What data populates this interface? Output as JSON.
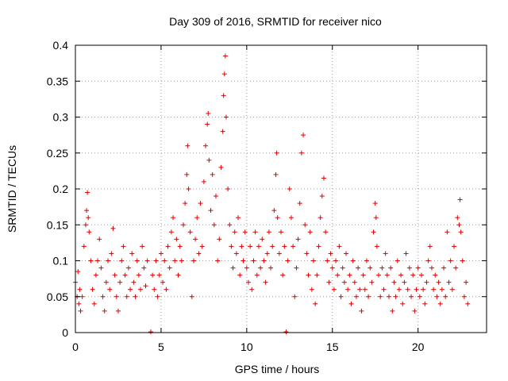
{
  "chart_data": {
    "type": "scatter",
    "title": "Day 309 of 2016, SRMTID for receiver nico",
    "xlabel": "GPS time / hours",
    "ylabel": "SRMTID / TECUs",
    "xlim": [
      0,
      24
    ],
    "ylim": [
      0,
      0.4
    ],
    "xticks": [
      0,
      5,
      10,
      15,
      20
    ],
    "xtick_labels": [
      "0",
      "5",
      "10",
      "15",
      "20"
    ],
    "yticks": [
      0,
      0.05,
      0.1,
      0.15,
      0.2,
      0.25,
      0.3,
      0.35,
      0.4
    ],
    "ytick_labels": [
      "0",
      "0.05",
      "0.1",
      "0.15",
      "0.2",
      "0.25",
      "0.3",
      "0.35",
      "0.4"
    ],
    "grid": true,
    "marker": "plus",
    "color": "#e00000",
    "series": [
      {
        "name": "SRMTID",
        "points": [
          [
            0.0,
            0.07
          ],
          [
            0.1,
            0.05
          ],
          [
            0.15,
            0.085
          ],
          [
            0.2,
            0.04
          ],
          [
            0.25,
            0.06
          ],
          [
            0.3,
            0.03
          ],
          [
            0.4,
            0.05
          ],
          [
            0.5,
            0.12
          ],
          [
            0.6,
            0.15
          ],
          [
            0.65,
            0.17
          ],
          [
            0.7,
            0.195
          ],
          [
            0.75,
            0.16
          ],
          [
            0.8,
            0.14
          ],
          [
            0.9,
            0.1
          ],
          [
            1.0,
            0.06
          ],
          [
            1.1,
            0.04
          ],
          [
            1.2,
            0.08
          ],
          [
            1.3,
            0.1
          ],
          [
            1.4,
            0.13
          ],
          [
            1.5,
            0.09
          ],
          [
            1.6,
            0.05
          ],
          [
            1.7,
            0.03
          ],
          [
            1.8,
            0.07
          ],
          [
            1.9,
            0.1
          ],
          [
            2.0,
            0.06
          ],
          [
            2.1,
            0.11
          ],
          [
            2.2,
            0.145
          ],
          [
            2.3,
            0.08
          ],
          [
            2.4,
            0.05
          ],
          [
            2.5,
            0.03
          ],
          [
            2.6,
            0.07
          ],
          [
            2.7,
            0.1
          ],
          [
            2.8,
            0.12
          ],
          [
            2.9,
            0.08
          ],
          [
            3.0,
            0.05
          ],
          [
            3.1,
            0.09
          ],
          [
            3.2,
            0.06
          ],
          [
            3.3,
            0.11
          ],
          [
            3.4,
            0.07
          ],
          [
            3.5,
            0.05
          ],
          [
            3.6,
            0.1
          ],
          [
            3.7,
            0.08
          ],
          [
            3.8,
            0.06
          ],
          [
            3.9,
            0.12
          ],
          [
            4.0,
            0.09
          ],
          [
            4.1,
            0.065
          ],
          [
            4.2,
            0.1
          ],
          [
            4.4,
            0.001
          ],
          [
            4.5,
            0.08
          ],
          [
            4.6,
            0.06
          ],
          [
            4.7,
            0.1
          ],
          [
            4.8,
            0.05
          ],
          [
            4.9,
            0.08
          ],
          [
            5.0,
            0.11
          ],
          [
            5.1,
            0.07
          ],
          [
            5.2,
            0.1
          ],
          [
            5.3,
            0.06
          ],
          [
            5.4,
            0.12
          ],
          [
            5.5,
            0.09
          ],
          [
            5.6,
            0.14
          ],
          [
            5.7,
            0.16
          ],
          [
            5.8,
            0.1
          ],
          [
            5.9,
            0.13
          ],
          [
            6.0,
            0.08
          ],
          [
            6.1,
            0.12
          ],
          [
            6.2,
            0.1
          ],
          [
            6.3,
            0.15
          ],
          [
            6.4,
            0.18
          ],
          [
            6.5,
            0.22
          ],
          [
            6.55,
            0.26
          ],
          [
            6.6,
            0.2
          ],
          [
            6.7,
            0.14
          ],
          [
            6.8,
            0.05
          ],
          [
            6.9,
            0.1
          ],
          [
            7.0,
            0.13
          ],
          [
            7.1,
            0.16
          ],
          [
            7.2,
            0.11
          ],
          [
            7.3,
            0.18
          ],
          [
            7.4,
            0.12
          ],
          [
            7.5,
            0.21
          ],
          [
            7.6,
            0.26
          ],
          [
            7.7,
            0.29
          ],
          [
            7.75,
            0.305
          ],
          [
            7.8,
            0.24
          ],
          [
            7.9,
            0.17
          ],
          [
            8.0,
            0.22
          ],
          [
            8.1,
            0.15
          ],
          [
            8.2,
            0.19
          ],
          [
            8.3,
            0.1
          ],
          [
            8.4,
            0.13
          ],
          [
            8.5,
            0.23
          ],
          [
            8.6,
            0.28
          ],
          [
            8.65,
            0.33
          ],
          [
            8.7,
            0.36
          ],
          [
            8.75,
            0.385
          ],
          [
            8.8,
            0.3
          ],
          [
            8.9,
            0.2
          ],
          [
            9.0,
            0.15
          ],
          [
            9.1,
            0.12
          ],
          [
            9.2,
            0.09
          ],
          [
            9.3,
            0.14
          ],
          [
            9.4,
            0.11
          ],
          [
            9.5,
            0.16
          ],
          [
            9.6,
            0.08
          ],
          [
            9.7,
            0.12
          ],
          [
            9.8,
            0.1
          ],
          [
            9.9,
            0.14
          ],
          [
            10.0,
            0.09
          ],
          [
            10.1,
            0.07
          ],
          [
            10.2,
            0.12
          ],
          [
            10.3,
            0.06
          ],
          [
            10.4,
            0.1
          ],
          [
            10.5,
            0.14
          ],
          [
            10.6,
            0.08
          ],
          [
            10.7,
            0.12
          ],
          [
            10.8,
            0.09
          ],
          [
            10.9,
            0.13
          ],
          [
            11.0,
            0.1
          ],
          [
            11.1,
            0.07
          ],
          [
            11.2,
            0.11
          ],
          [
            11.3,
            0.14
          ],
          [
            11.4,
            0.09
          ],
          [
            11.5,
            0.12
          ],
          [
            11.6,
            0.17
          ],
          [
            11.7,
            0.22
          ],
          [
            11.75,
            0.25
          ],
          [
            11.8,
            0.16
          ],
          [
            11.9,
            0.11
          ],
          [
            12.0,
            0.14
          ],
          [
            12.1,
            0.08
          ],
          [
            12.2,
            0.12
          ],
          [
            12.3,
            0.001
          ],
          [
            12.4,
            0.1
          ],
          [
            12.5,
            0.2
          ],
          [
            12.6,
            0.16
          ],
          [
            12.7,
            0.12
          ],
          [
            12.8,
            0.05
          ],
          [
            12.9,
            0.09
          ],
          [
            13.0,
            0.13
          ],
          [
            13.1,
            0.18
          ],
          [
            13.2,
            0.25
          ],
          [
            13.3,
            0.275
          ],
          [
            13.4,
            0.15
          ],
          [
            13.5,
            0.11
          ],
          [
            13.6,
            0.08
          ],
          [
            13.7,
            0.14
          ],
          [
            13.8,
            0.06
          ],
          [
            13.9,
            0.1
          ],
          [
            14.0,
            0.04
          ],
          [
            14.1,
            0.08
          ],
          [
            14.2,
            0.12
          ],
          [
            14.3,
            0.16
          ],
          [
            14.4,
            0.19
          ],
          [
            14.5,
            0.215
          ],
          [
            14.6,
            0.14
          ],
          [
            14.7,
            0.1
          ],
          [
            14.8,
            0.07
          ],
          [
            14.9,
            0.11
          ],
          [
            15.0,
            0.09
          ],
          [
            15.1,
            0.06
          ],
          [
            15.2,
            0.1
          ],
          [
            15.3,
            0.08
          ],
          [
            15.4,
            0.12
          ],
          [
            15.5,
            0.05
          ],
          [
            15.6,
            0.09
          ],
          [
            15.7,
            0.07
          ],
          [
            15.8,
            0.11
          ],
          [
            15.9,
            0.06
          ],
          [
            16.0,
            0.08
          ],
          [
            16.1,
            0.04
          ],
          [
            16.2,
            0.1
          ],
          [
            16.3,
            0.07
          ],
          [
            16.4,
            0.05
          ],
          [
            16.5,
            0.09
          ],
          [
            16.6,
            0.06
          ],
          [
            16.7,
            0.03
          ],
          [
            16.8,
            0.08
          ],
          [
            16.9,
            0.06
          ],
          [
            17.0,
            0.1
          ],
          [
            17.1,
            0.05
          ],
          [
            17.2,
            0.09
          ],
          [
            17.3,
            0.07
          ],
          [
            17.4,
            0.14
          ],
          [
            17.5,
            0.18
          ],
          [
            17.55,
            0.16
          ],
          [
            17.6,
            0.12
          ],
          [
            17.7,
            0.08
          ],
          [
            17.8,
            0.05
          ],
          [
            17.9,
            0.09
          ],
          [
            18.0,
            0.06
          ],
          [
            18.1,
            0.11
          ],
          [
            18.2,
            0.08
          ],
          [
            18.3,
            0.05
          ],
          [
            18.4,
            0.09
          ],
          [
            18.5,
            0.03
          ],
          [
            18.6,
            0.07
          ],
          [
            18.7,
            0.05
          ],
          [
            18.8,
            0.1
          ],
          [
            18.9,
            0.06
          ],
          [
            19.0,
            0.08
          ],
          [
            19.1,
            0.04
          ],
          [
            19.2,
            0.07
          ],
          [
            19.3,
            0.11
          ],
          [
            19.4,
            0.06
          ],
          [
            19.5,
            0.09
          ],
          [
            19.6,
            0.05
          ],
          [
            19.7,
            0.08
          ],
          [
            19.8,
            0.03
          ],
          [
            19.9,
            0.06
          ],
          [
            20.0,
            0.09
          ],
          [
            20.1,
            0.05
          ],
          [
            20.2,
            0.08
          ],
          [
            20.3,
            0.06
          ],
          [
            20.4,
            0.04
          ],
          [
            20.5,
            0.07
          ],
          [
            20.6,
            0.1
          ],
          [
            20.7,
            0.12
          ],
          [
            20.8,
            0.09
          ],
          [
            20.9,
            0.06
          ],
          [
            21.0,
            0.08
          ],
          [
            21.1,
            0.05
          ],
          [
            21.2,
            0.07
          ],
          [
            21.3,
            0.04
          ],
          [
            21.4,
            0.06
          ],
          [
            21.5,
            0.09
          ],
          [
            21.6,
            0.05
          ],
          [
            21.7,
            0.14
          ],
          [
            21.8,
            0.07
          ],
          [
            21.9,
            0.1
          ],
          [
            22.0,
            0.06
          ],
          [
            22.1,
            0.12
          ],
          [
            22.2,
            0.09
          ],
          [
            22.3,
            0.16
          ],
          [
            22.4,
            0.15
          ],
          [
            22.45,
            0.185
          ],
          [
            22.5,
            0.14
          ],
          [
            22.6,
            0.1
          ],
          [
            22.7,
            0.05
          ],
          [
            22.8,
            0.07
          ],
          [
            22.9,
            0.04
          ]
        ]
      }
    ]
  }
}
